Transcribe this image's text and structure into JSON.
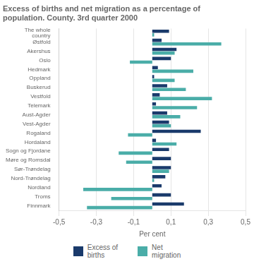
{
  "chart_data": {
    "type": "bar",
    "orientation": "horizontal",
    "title": "Excess of births and net migration as a percentage of\npopulation. County. 3rd quarter 2000",
    "categories": [
      "The whole\ncountry",
      "Østfold",
      "Akershus",
      "Oslo",
      "Hedmark",
      "Oppland",
      "Buskerud",
      "Vestfold",
      "Telemark",
      "Aust-Agder",
      "Vest-Agder",
      "Rogaland",
      "Hordaland",
      "Sogn og Fjordane",
      "Møre og Romsdal",
      "Sør-Trøndelag",
      "Nord-Trøndelag",
      "Nordland",
      "Troms",
      "Finnmark"
    ],
    "series": [
      {
        "name": "Excess of\nbirths",
        "color": "#1a3a6b",
        "values": [
          0.09,
          0.05,
          0.13,
          0.1,
          0.03,
          0.01,
          0.08,
          0.04,
          0.02,
          0.08,
          0.09,
          0.26,
          0.02,
          0.09,
          0.1,
          0.1,
          0.07,
          0.05,
          0.1,
          0.17
        ]
      },
      {
        "name": "Net\nmigration",
        "color": "#4aada8",
        "values": [
          0.01,
          0.37,
          0.12,
          -0.12,
          0.22,
          0.12,
          0.18,
          0.32,
          0.24,
          0.15,
          0.1,
          -0.13,
          0.13,
          -0.18,
          -0.14,
          0.09,
          0.01,
          -0.37,
          -0.22,
          -0.35
        ]
      }
    ],
    "xlabel": "Per cent",
    "xlim": [
      -0.5,
      0.5
    ],
    "xticks": [
      {
        "value": -0.5,
        "label": "-0,5"
      },
      {
        "value": -0.3,
        "label": "-0,3"
      },
      {
        "value": -0.1,
        "label": "-0,1"
      },
      {
        "value": 0.1,
        "label": "0,1"
      },
      {
        "value": 0.3,
        "label": "0,3"
      },
      {
        "value": 0.5,
        "label": "0,5"
      }
    ],
    "grid": true,
    "legend": "bottom"
  }
}
